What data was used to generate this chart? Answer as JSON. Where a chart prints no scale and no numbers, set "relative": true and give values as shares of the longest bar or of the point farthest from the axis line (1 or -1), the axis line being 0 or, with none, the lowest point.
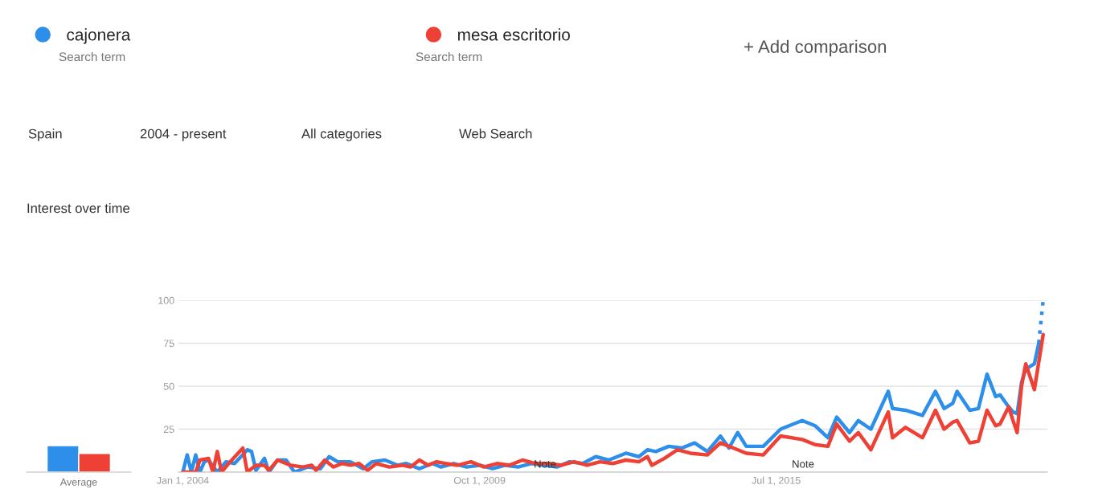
{
  "chart_data": [
    {
      "type": "other",
      "annotations": [
        "Search term",
        "Search term",
        "+ Add comparison",
        "Spain",
        "2004 - present",
        "All categories",
        "Web Search"
      ]
    },
    {
      "type": "bar",
      "categories": [
        null,
        null
      ],
      "values": [
        1,
        0.7
      ],
      "colors": [
        "#2d8fea",
        "#ee4035"
      ],
      "relative": true,
      "xlabel": "Average"
    },
    {
      "type": "line",
      "title": "Interest over time",
      "legend": "top",
      "grid": "y",
      "xlim": [
        "2003-12",
        "2020-10"
      ],
      "ylim": [
        0,
        100
      ],
      "xticks": [
        {
          "value": "2004-01-01",
          "label": "Jan 1, 2004"
        },
        {
          "value": "2009-10-01",
          "label": "Oct 1, 2009"
        },
        {
          "value": "2015-07-01",
          "label": "Jul 1, 2015"
        }
      ],
      "yticks": [
        {
          "value": 0,
          "label": null
        },
        25,
        50,
        75,
        100
      ],
      "annotations": [
        "Note",
        "Note"
      ],
      "series": [
        {
          "name": "cajonera",
          "color": "#2d8fea",
          "line_style": "solid",
          "x": [
            "2004-01",
            "2004-02",
            "2004-03",
            "2004-04",
            "2004-05",
            "2004-06",
            "2004-07",
            "2004-09",
            "2004-11",
            "2005-01",
            "2005-04",
            "2005-05",
            "2005-06",
            "2005-08",
            "2005-09",
            "2005-11",
            "2006-01",
            "2006-03",
            "2006-06",
            "2006-09",
            "2006-11",
            "2007-01",
            "2007-04",
            "2007-07",
            "2007-09",
            "2007-12",
            "2008-03",
            "2008-05",
            "2008-08",
            "2008-11",
            "2009-01",
            "2009-04",
            "2009-07",
            "2009-10",
            "2010-01",
            "2010-04",
            "2010-07",
            "2010-10",
            "2011-01",
            "2011-04",
            "2011-07",
            "2011-10",
            "2012-01",
            "2012-04",
            "2012-08",
            "2012-11",
            "2013-01",
            "2013-03",
            "2013-06",
            "2013-09",
            "2013-12",
            "2014-03",
            "2014-06",
            "2014-08",
            "2014-10",
            "2014-12",
            "2015-04",
            "2015-08",
            "2016-01",
            "2016-04",
            "2016-07",
            "2016-09",
            "2016-12",
            "2017-02",
            "2017-05",
            "2017-09",
            "2017-10",
            "2018-01",
            "2018-05",
            "2018-08",
            "2018-10",
            "2018-12",
            "2019-01",
            "2019-04",
            "2019-06",
            "2019-08",
            "2019-10",
            "2019-11",
            "2020-01",
            "2020-02",
            "2020-03",
            "2020-04",
            "2020-05",
            "2020-07",
            "2020-08"
          ],
          "values": [
            0,
            10,
            0,
            10,
            0,
            6,
            7,
            0,
            6,
            5,
            13,
            12,
            1,
            8,
            0,
            7,
            7,
            0,
            3,
            2,
            9,
            6,
            6,
            2,
            6,
            7,
            4,
            5,
            2,
            5,
            3,
            5,
            3,
            4,
            2,
            4,
            3,
            5,
            4,
            3,
            6,
            5,
            9,
            7,
            11,
            9,
            13,
            12,
            15,
            14,
            17,
            12,
            21,
            14,
            23,
            15,
            15,
            25,
            30,
            27,
            20,
            32,
            23,
            30,
            25,
            47,
            37,
            36,
            33,
            47,
            37,
            40,
            47,
            36,
            37,
            57,
            44,
            45,
            38,
            35,
            34,
            52,
            60,
            63,
            75
          ]
        },
        {
          "color": "#2d8fea",
          "line_style": "dotted",
          "x": [
            "2020-08",
            "2020-09"
          ],
          "values": [
            75,
            100
          ]
        },
        {
          "name": "mesa escritorio",
          "color": "#ee4035",
          "line_style": "solid",
          "x": [
            "2004-01",
            "2004-04",
            "2004-05",
            "2004-07",
            "2004-08",
            "2004-09",
            "2004-10",
            "2004-12",
            "2005-03",
            "2005-04",
            "2005-06",
            "2005-08",
            "2005-09",
            "2005-11",
            "2006-02",
            "2006-05",
            "2006-07",
            "2006-08",
            "2006-10",
            "2006-12",
            "2007-02",
            "2007-04",
            "2007-06",
            "2007-08",
            "2007-10",
            "2008-01",
            "2008-04",
            "2008-06",
            "2008-08",
            "2008-10",
            "2008-12",
            "2009-02",
            "2009-05",
            "2009-08",
            "2009-11",
            "2010-02",
            "2010-05",
            "2010-08",
            "2010-11",
            "2011-02",
            "2011-05",
            "2011-08",
            "2011-11",
            "2012-02",
            "2012-05",
            "2012-08",
            "2012-11",
            "2013-01",
            "2013-02",
            "2013-05",
            "2013-08",
            "2013-11",
            "2014-03",
            "2014-06",
            "2014-09",
            "2014-12",
            "2015-04",
            "2015-08",
            "2016-01",
            "2016-04",
            "2016-07",
            "2016-09",
            "2016-12",
            "2017-02",
            "2017-05",
            "2017-09",
            "2017-10",
            "2018-01",
            "2018-05",
            "2018-08",
            "2018-10",
            "2018-12",
            "2019-01",
            "2019-04",
            "2019-06",
            "2019-08",
            "2019-10",
            "2019-11",
            "2020-01",
            "2020-02",
            "2020-03",
            "2020-04",
            "2020-05",
            "2020-07",
            "2020-09"
          ],
          "values": [
            0,
            0,
            7,
            8,
            0,
            12,
            0,
            6,
            14,
            0,
            4,
            4,
            1,
            7,
            4,
            3,
            4,
            1,
            7,
            3,
            5,
            4,
            5,
            1,
            5,
            3,
            4,
            3,
            7,
            4,
            6,
            5,
            4,
            6,
            3,
            5,
            4,
            7,
            5,
            5,
            4,
            6,
            4,
            6,
            5,
            7,
            6,
            9,
            4,
            8,
            13,
            11,
            10,
            17,
            14,
            11,
            10,
            21,
            19,
            16,
            15,
            28,
            18,
            23,
            13,
            35,
            20,
            26,
            20,
            36,
            25,
            29,
            30,
            17,
            18,
            36,
            27,
            28,
            38,
            30,
            23,
            50,
            63,
            48,
            80
          ]
        }
      ]
    }
  ]
}
